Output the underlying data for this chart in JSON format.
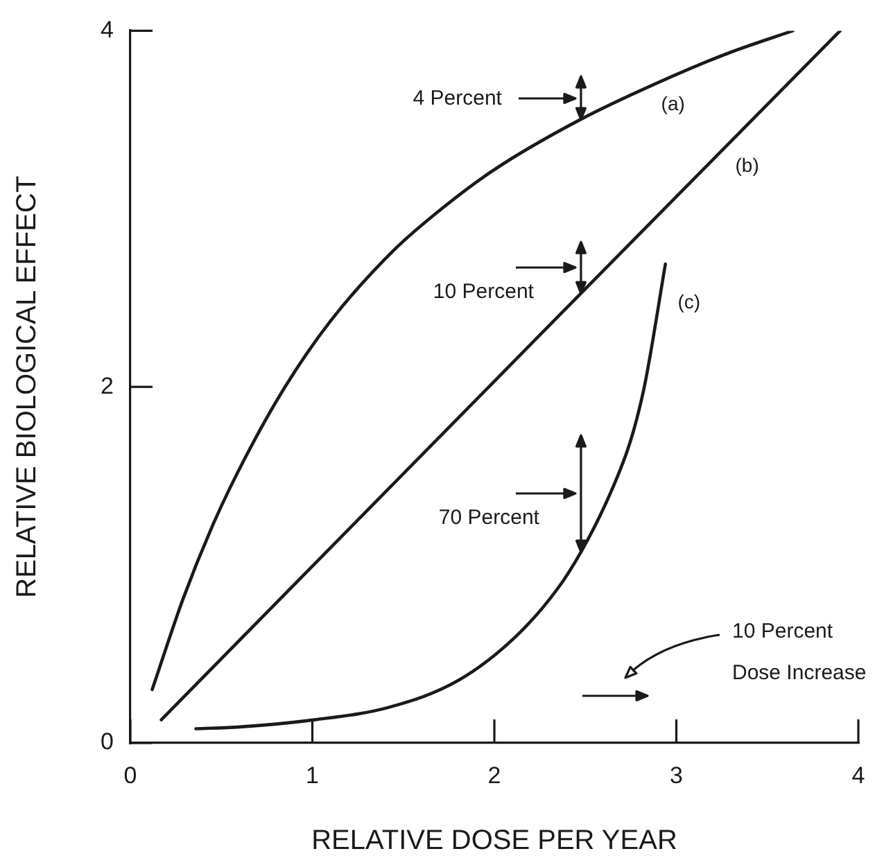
{
  "chart_data": {
    "type": "line",
    "xlabel": "RELATIVE DOSE PER YEAR",
    "ylabel": "RELATIVE BIOLOGICAL EFFECT",
    "xlim": [
      0,
      4
    ],
    "ylim": [
      0,
      4
    ],
    "xticks": [
      0,
      1,
      2,
      3,
      4
    ],
    "yticks": [
      0,
      2,
      4
    ],
    "grid": false,
    "legend": false,
    "marker": "none",
    "line_style": "solid",
    "series": [
      {
        "name": "(a)",
        "color": "#1a1a1a",
        "x": [
          0.12,
          0.29,
          0.46,
          0.63,
          0.85,
          1.1,
          1.45,
          1.71,
          2.0,
          2.47,
          2.99,
          3.3,
          3.64
        ],
        "values": [
          0.3,
          0.81,
          1.24,
          1.6,
          2.0,
          2.37,
          2.77,
          3.0,
          3.22,
          3.5,
          3.75,
          3.88,
          4.0
        ]
      },
      {
        "name": "(b)",
        "color": "#1a1a1a",
        "x": [
          0.17,
          2.48,
          3.9
        ],
        "values": [
          0.13,
          2.53,
          4.0
        ]
      },
      {
        "name": "(c)",
        "color": "#1a1a1a",
        "x": [
          0.36,
          0.6,
          1.01,
          1.42,
          1.8,
          2.12,
          2.35,
          2.48,
          2.61,
          2.73,
          2.78,
          2.83,
          2.94
        ],
        "values": [
          0.08,
          0.09,
          0.13,
          0.2,
          0.35,
          0.6,
          0.87,
          1.08,
          1.34,
          1.64,
          1.81,
          2.03,
          2.69
        ]
      }
    ],
    "annotations": [
      "4 Percent",
      "10 Percent",
      "70 Percent",
      "10 Percent\nDose Increase"
    ]
  }
}
